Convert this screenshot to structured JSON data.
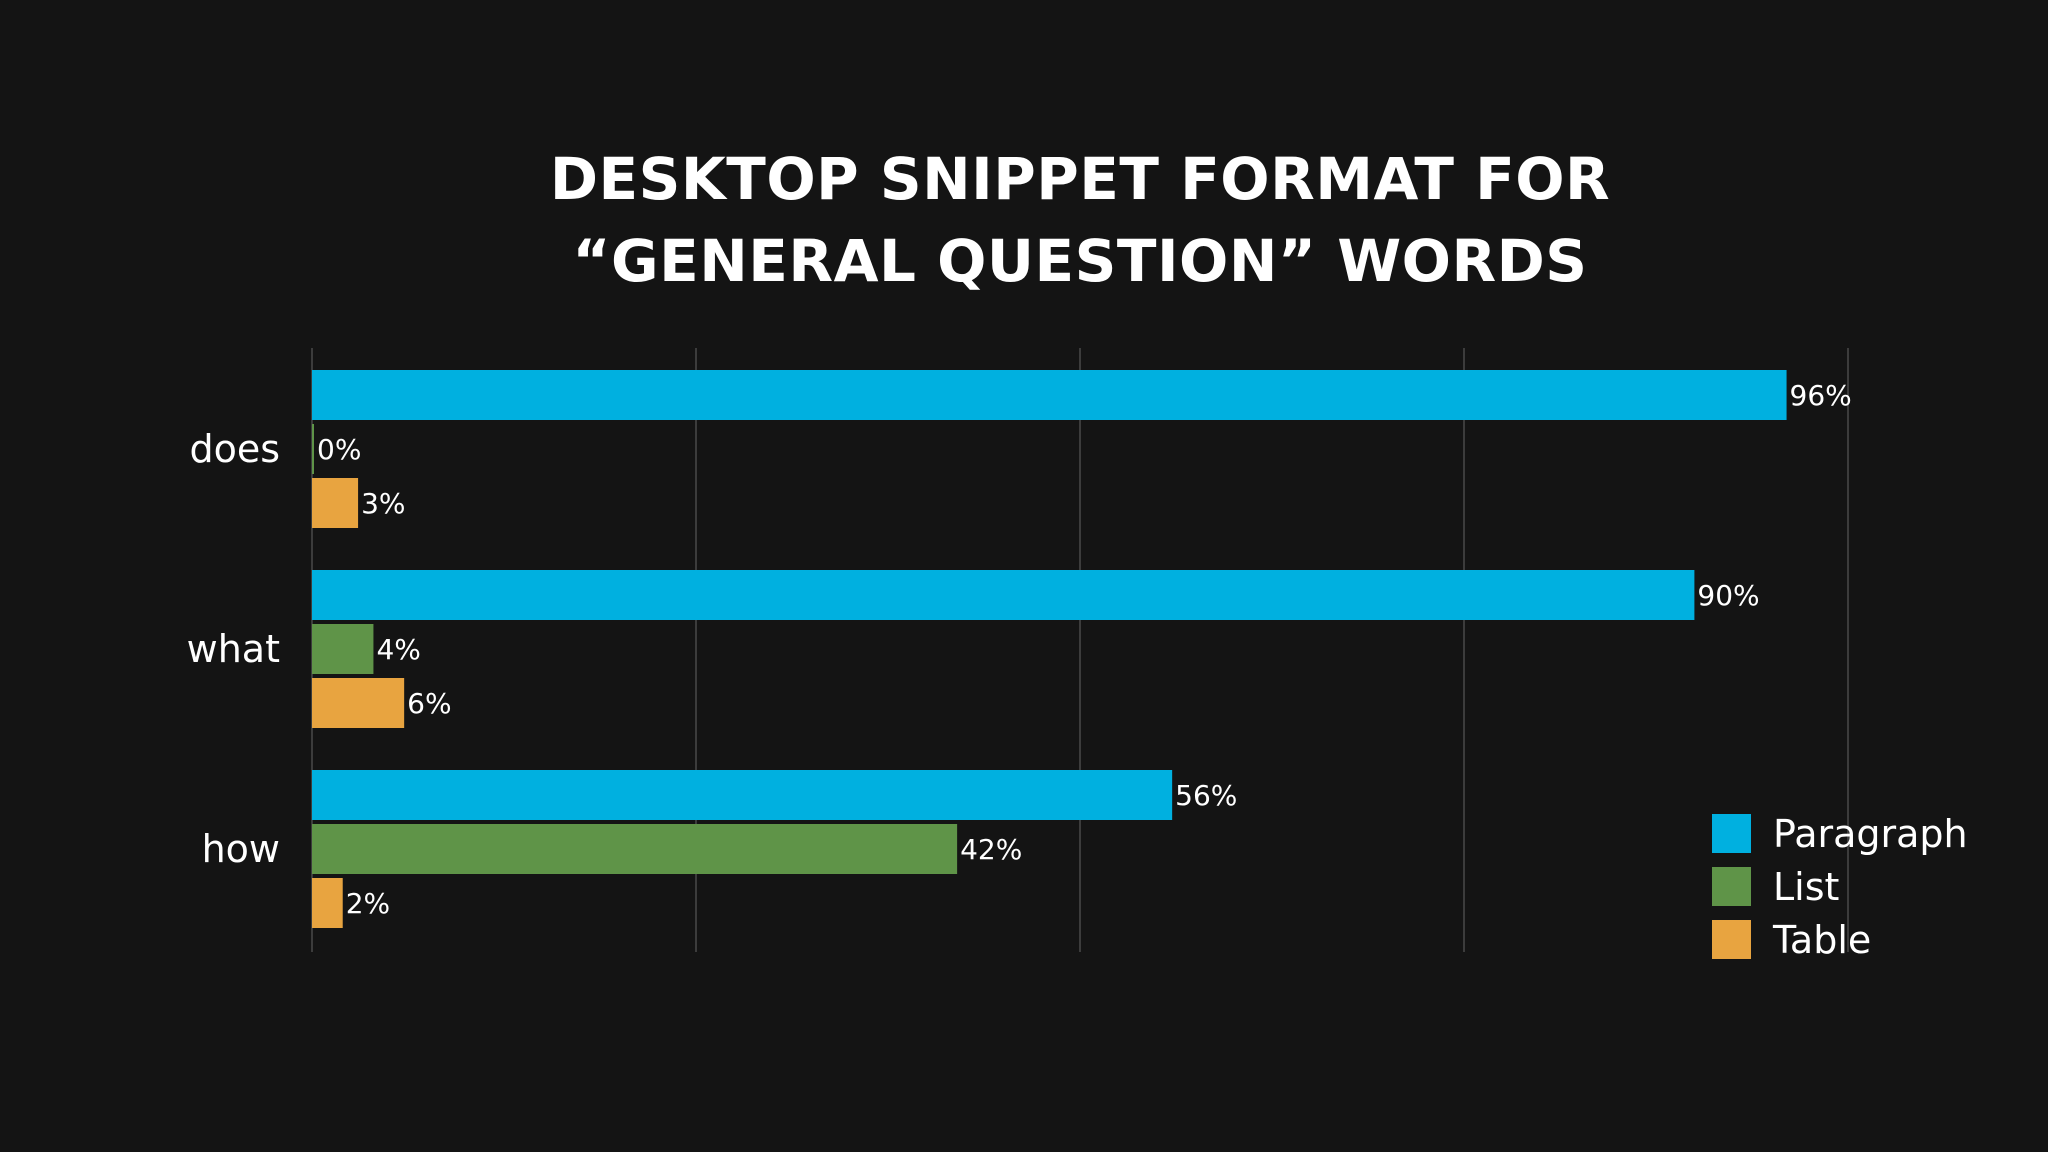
{
  "chart_data": {
    "type": "bar",
    "orientation": "horizontal",
    "title_lines": [
      "DESKTOP SNIPPET FORMAT FOR",
      "“GENERAL QUESTION” WORDS"
    ],
    "categories": [
      "does",
      "what",
      "how"
    ],
    "series": [
      {
        "name": "Paragraph",
        "color": "#00b0e0",
        "values": [
          96,
          90,
          56
        ],
        "labels": [
          "96%",
          "90%",
          "56%"
        ]
      },
      {
        "name": "List",
        "color": "#5f9448",
        "values": [
          0,
          4,
          42
        ],
        "labels": [
          "0%",
          "4%",
          "42%"
        ]
      },
      {
        "name": "Table",
        "color": "#e8a440",
        "values": [
          3,
          6,
          2
        ],
        "labels": [
          "3%",
          "6%",
          "2%"
        ]
      }
    ],
    "xlim": [
      0,
      100
    ],
    "x_gridlines": [
      0,
      25,
      50,
      75,
      100
    ],
    "grid": true,
    "legend_position": "bottom-right"
  }
}
